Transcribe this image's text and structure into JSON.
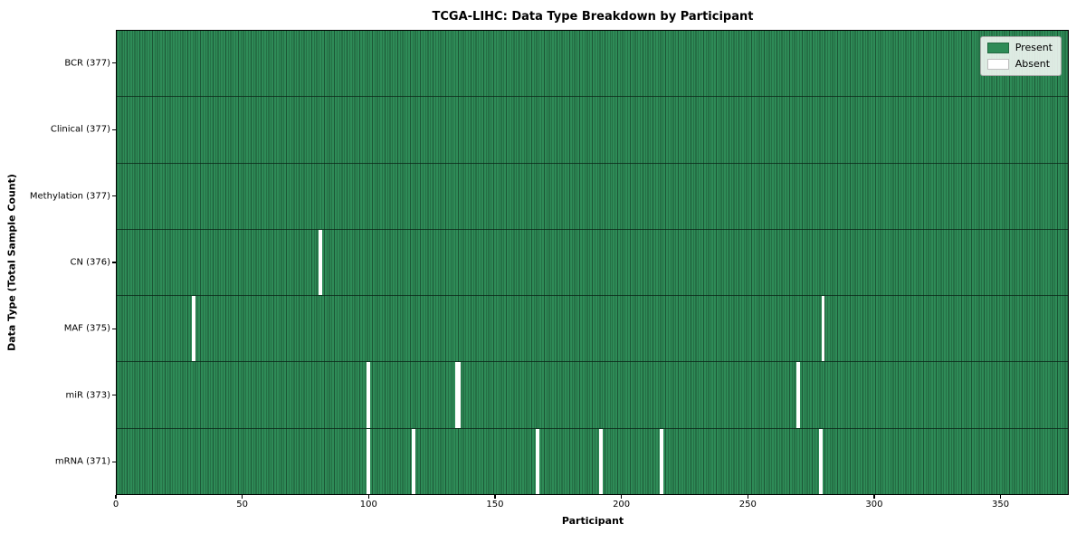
{
  "chart_data": {
    "type": "heatmap",
    "title": "TCGA-LIHC: Data Type Breakdown by Participant",
    "xlabel": "Participant",
    "ylabel": "Data Type (Total Sample Count)",
    "n_participants": 377,
    "xlim": [
      0,
      377
    ],
    "x_ticks": [
      0,
      50,
      100,
      150,
      200,
      250,
      300,
      350
    ],
    "grid": false,
    "legend_position": "upper right",
    "legend": [
      {
        "label": "Present",
        "color": "#2e8b57"
      },
      {
        "label": "Absent",
        "color": "#ffffff"
      }
    ],
    "rows": [
      {
        "label": "BCR (377)",
        "data_type": "BCR",
        "present_count": 377,
        "absent_participants": []
      },
      {
        "label": "Clinical (377)",
        "data_type": "Clinical",
        "present_count": 377,
        "absent_participants": []
      },
      {
        "label": "Methylation (377)",
        "data_type": "Methylation",
        "present_count": 377,
        "absent_participants": []
      },
      {
        "label": "CN (376)",
        "data_type": "CN",
        "present_count": 376,
        "absent_participants": [
          80
        ]
      },
      {
        "label": "MAF (375)",
        "data_type": "MAF",
        "present_count": 375,
        "absent_participants": [
          30,
          279
        ]
      },
      {
        "label": "miR (373)",
        "data_type": "miR",
        "present_count": 373,
        "absent_participants": [
          99,
          134,
          135,
          269
        ]
      },
      {
        "label": "mRNA (371)",
        "data_type": "mRNA",
        "present_count": 371,
        "absent_participants": [
          99,
          117,
          166,
          191,
          215,
          278
        ]
      }
    ],
    "colors": {
      "present": "#2e8b57",
      "absent": "#ffffff",
      "cell_edge": "#1c5736",
      "axis": "#000000"
    }
  }
}
